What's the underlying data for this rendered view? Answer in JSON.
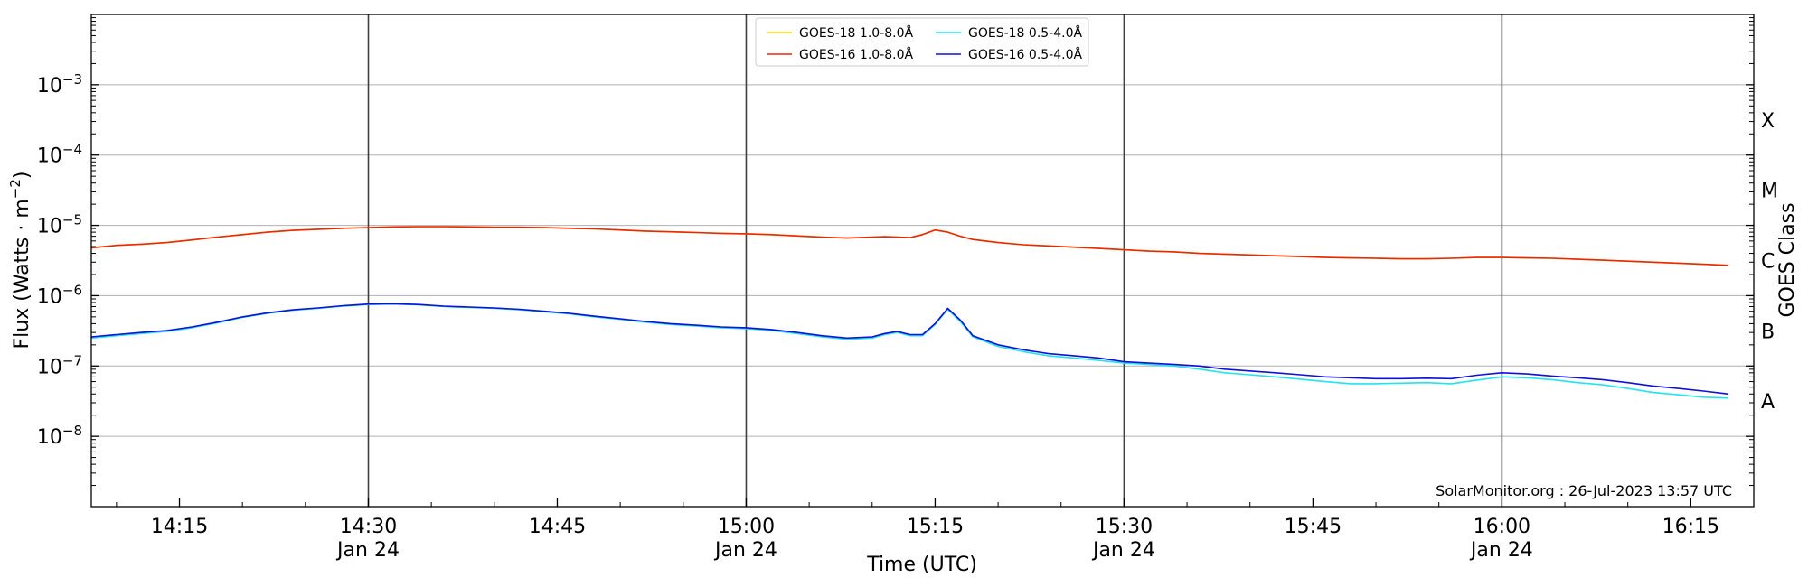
{
  "chart_data": {
    "type": "line",
    "ylabel": "Flux (Watts · m",
    "ylabel_sup": "−2",
    "ylabel_close": ")",
    "xlabel": "Time (UTC)",
    "right_axis_label": "GOES Class",
    "watermark": "SolarMonitor.org : 26-Jul-2023 13:57 UTC",
    "xlim": [
      "14:08",
      "16:20"
    ],
    "ylim": [
      1e-09,
      0.01
    ],
    "yscale": "log",
    "grid": "horizontal",
    "legend_position": "top-center",
    "y_ticks": [
      {
        "exp": "−3",
        "value": 0.001
      },
      {
        "exp": "−4",
        "value": 0.0001
      },
      {
        "exp": "−5",
        "value": 1e-05
      },
      {
        "exp": "−6",
        "value": 1e-06
      },
      {
        "exp": "−7",
        "value": 1e-07
      },
      {
        "exp": "−8",
        "value": 1e-08
      }
    ],
    "x_ticks": [
      {
        "time": "14:15",
        "label": "14:15",
        "date": ""
      },
      {
        "time": "14:30",
        "label": "14:30",
        "date": "Jan 24"
      },
      {
        "time": "14:45",
        "label": "14:45",
        "date": ""
      },
      {
        "time": "15:00",
        "label": "15:00",
        "date": "Jan 24"
      },
      {
        "time": "15:15",
        "label": "15:15",
        "date": ""
      },
      {
        "time": "15:30",
        "label": "15:30",
        "date": "Jan 24"
      },
      {
        "time": "15:45",
        "label": "15:45",
        "date": ""
      },
      {
        "time": "16:00",
        "label": "16:00",
        "date": "Jan 24"
      },
      {
        "time": "16:15",
        "label": "16:15",
        "date": ""
      }
    ],
    "day_lines": [
      "14:30",
      "15:00",
      "15:30",
      "16:00"
    ],
    "goes_classes": [
      {
        "label": "X",
        "value": 0.000316
      },
      {
        "label": "M",
        "value": 3.16e-05
      },
      {
        "label": "C",
        "value": 3.16e-06
      },
      {
        "label": "B",
        "value": 3.16e-07
      },
      {
        "label": "A",
        "value": 3.16e-08
      }
    ],
    "x": [
      "14:08",
      "14:10",
      "14:12",
      "14:14",
      "14:16",
      "14:18",
      "14:20",
      "14:22",
      "14:24",
      "14:26",
      "14:28",
      "14:30",
      "14:32",
      "14:34",
      "14:36",
      "14:38",
      "14:40",
      "14:42",
      "14:44",
      "14:46",
      "14:48",
      "14:50",
      "14:52",
      "14:54",
      "14:56",
      "14:58",
      "15:00",
      "15:02",
      "15:04",
      "15:06",
      "15:08",
      "15:10",
      "15:11",
      "15:12",
      "15:13",
      "15:14",
      "15:15",
      "15:16",
      "15:17",
      "15:18",
      "15:20",
      "15:22",
      "15:24",
      "15:26",
      "15:28",
      "15:30",
      "15:32",
      "15:34",
      "15:36",
      "15:38",
      "15:40",
      "15:42",
      "15:44",
      "15:46",
      "15:48",
      "15:50",
      "15:52",
      "15:54",
      "15:56",
      "15:58",
      "16:00",
      "16:02",
      "16:04",
      "16:06",
      "16:08",
      "16:10",
      "16:12",
      "16:14",
      "16:16",
      "16:18"
    ],
    "series": [
      {
        "name": "GOES-18 1.0-8.0Å",
        "color": "#ffd700",
        "values": [
          4.8e-06,
          5.2e-06,
          5.4e-06,
          5.7e-06,
          6.2e-06,
          6.8e-06,
          7.4e-06,
          8e-06,
          8.5e-06,
          8.8e-06,
          9.1e-06,
          9.3e-06,
          9.5e-06,
          9.6e-06,
          9.6e-06,
          9.5e-06,
          9.4e-06,
          9.4e-06,
          9.3e-06,
          9.1e-06,
          8.9e-06,
          8.6e-06,
          8.3e-06,
          8.1e-06,
          7.9e-06,
          7.7e-06,
          7.6e-06,
          7.4e-06,
          7.1e-06,
          6.8e-06,
          6.6e-06,
          6.8e-06,
          6.9e-06,
          6.8e-06,
          6.7e-06,
          7.4e-06,
          8.6e-06,
          8e-06,
          7e-06,
          6.3e-06,
          5.7e-06,
          5.3e-06,
          5.1e-06,
          4.9e-06,
          4.7e-06,
          4.5e-06,
          4.3e-06,
          4.2e-06,
          4e-06,
          3.9e-06,
          3.8e-06,
          3.7e-06,
          3.6e-06,
          3.5e-06,
          3.45e-06,
          3.4e-06,
          3.35e-06,
          3.35e-06,
          3.4e-06,
          3.5e-06,
          3.5e-06,
          3.45e-06,
          3.4e-06,
          3.3e-06,
          3.2e-06,
          3.1e-06,
          3e-06,
          2.9e-06,
          2.8e-06,
          2.7e-06
        ]
      },
      {
        "name": "GOES-16 1.0-8.0Å",
        "color": "#e8280a",
        "values": [
          4.8e-06,
          5.2e-06,
          5.4e-06,
          5.7e-06,
          6.2e-06,
          6.8e-06,
          7.4e-06,
          8e-06,
          8.5e-06,
          8.8e-06,
          9.1e-06,
          9.3e-06,
          9.5e-06,
          9.6e-06,
          9.6e-06,
          9.5e-06,
          9.4e-06,
          9.4e-06,
          9.3e-06,
          9.1e-06,
          8.9e-06,
          8.6e-06,
          8.3e-06,
          8.1e-06,
          7.9e-06,
          7.7e-06,
          7.6e-06,
          7.4e-06,
          7.1e-06,
          6.8e-06,
          6.6e-06,
          6.8e-06,
          6.9e-06,
          6.8e-06,
          6.7e-06,
          7.4e-06,
          8.6e-06,
          8e-06,
          7e-06,
          6.3e-06,
          5.7e-06,
          5.3e-06,
          5.1e-06,
          4.9e-06,
          4.7e-06,
          4.5e-06,
          4.3e-06,
          4.2e-06,
          4e-06,
          3.9e-06,
          3.8e-06,
          3.7e-06,
          3.6e-06,
          3.5e-06,
          3.45e-06,
          3.4e-06,
          3.35e-06,
          3.35e-06,
          3.4e-06,
          3.5e-06,
          3.5e-06,
          3.45e-06,
          3.4e-06,
          3.3e-06,
          3.2e-06,
          3.1e-06,
          3e-06,
          2.9e-06,
          2.8e-06,
          2.7e-06
        ]
      },
      {
        "name": "GOES-18 0.5-4.0Å",
        "color": "#22e3f0",
        "values": [
          2.5e-07,
          2.7e-07,
          2.9e-07,
          3.1e-07,
          3.5e-07,
          4.1e-07,
          4.9e-07,
          5.6e-07,
          6.2e-07,
          6.6e-07,
          7.1e-07,
          7.5e-07,
          7.6e-07,
          7.4e-07,
          7e-07,
          6.8e-07,
          6.6e-07,
          6.3e-07,
          5.9e-07,
          5.5e-07,
          5e-07,
          4.6e-07,
          4.2e-07,
          3.9e-07,
          3.7e-07,
          3.5e-07,
          3.4e-07,
          3.2e-07,
          2.9e-07,
          2.6e-07,
          2.4e-07,
          2.5e-07,
          2.8e-07,
          3e-07,
          2.7e-07,
          2.7e-07,
          3.9e-07,
          6.4e-07,
          4.3e-07,
          2.6e-07,
          1.9e-07,
          1.6e-07,
          1.4e-07,
          1.3e-07,
          1.2e-07,
          1.1e-07,
          1.05e-07,
          1e-07,
          9e-08,
          8e-08,
          7.5e-08,
          7e-08,
          6.5e-08,
          6e-08,
          5.6e-08,
          5.6e-08,
          5.7e-08,
          5.8e-08,
          5.6e-08,
          6.3e-08,
          7e-08,
          6.8e-08,
          6.4e-08,
          5.8e-08,
          5.4e-08,
          4.8e-08,
          4.2e-08,
          3.9e-08,
          3.6e-08,
          3.5e-08
        ]
      },
      {
        "name": "GOES-16 0.5-4.0Å",
        "color": "#1010d8",
        "values": [
          2.6e-07,
          2.8e-07,
          3e-07,
          3.2e-07,
          3.6e-07,
          4.2e-07,
          5e-07,
          5.7e-07,
          6.3e-07,
          6.7e-07,
          7.2e-07,
          7.6e-07,
          7.7e-07,
          7.5e-07,
          7.1e-07,
          6.9e-07,
          6.7e-07,
          6.4e-07,
          6e-07,
          5.6e-07,
          5.1e-07,
          4.7e-07,
          4.3e-07,
          4e-07,
          3.8e-07,
          3.6e-07,
          3.5e-07,
          3.3e-07,
          3e-07,
          2.7e-07,
          2.5e-07,
          2.6e-07,
          2.9e-07,
          3.1e-07,
          2.8e-07,
          2.8e-07,
          4e-07,
          6.6e-07,
          4.5e-07,
          2.7e-07,
          2e-07,
          1.7e-07,
          1.5e-07,
          1.4e-07,
          1.3e-07,
          1.15e-07,
          1.1e-07,
          1.05e-07,
          1e-07,
          9e-08,
          8.5e-08,
          8e-08,
          7.5e-08,
          7e-08,
          6.8e-08,
          6.6e-08,
          6.6e-08,
          6.7e-08,
          6.6e-08,
          7.4e-08,
          8e-08,
          7.7e-08,
          7.2e-08,
          6.8e-08,
          6.4e-08,
          5.8e-08,
          5.2e-08,
          4.8e-08,
          4.4e-08,
          4e-08
        ]
      }
    ]
  }
}
